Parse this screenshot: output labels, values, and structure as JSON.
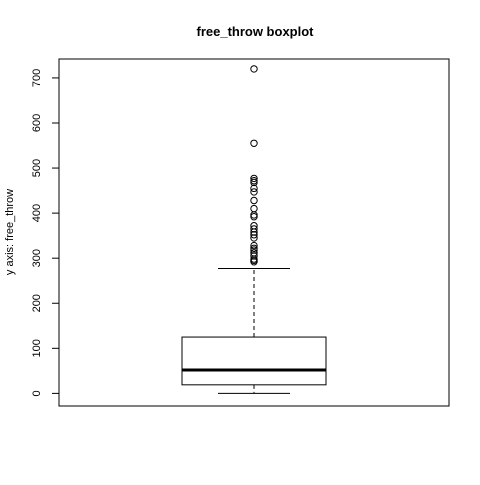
{
  "chart_data": {
    "type": "boxplot",
    "title": "free_throw boxplot",
    "xlabel": "",
    "ylabel": "y axis: free_throw",
    "ylim": [
      -28,
      742
    ],
    "yticks": [
      0,
      100,
      200,
      300,
      400,
      500,
      600,
      700
    ],
    "ytick_labels": [
      "0",
      "100",
      "200",
      "300",
      "400",
      "500",
      "600",
      "700"
    ],
    "grid": false,
    "legend": "none",
    "box": {
      "min": 0,
      "q1": 19,
      "median": 52,
      "q3": 125,
      "max": 277
    },
    "outliers": [
      292,
      295,
      298,
      305,
      312,
      318,
      322,
      328,
      345,
      352,
      358,
      365,
      372,
      392,
      396,
      410,
      428,
      447,
      455,
      468,
      472,
      477,
      555,
      720
    ]
  }
}
